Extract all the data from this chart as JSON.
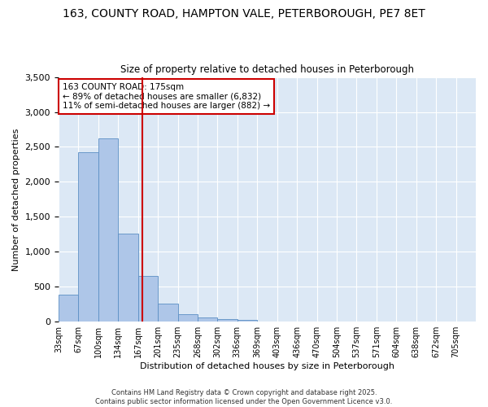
{
  "title_line1": "163, COUNTY ROAD, HAMPTON VALE, PETERBOROUGH, PE7 8ET",
  "title_line2": "Size of property relative to detached houses in Peterborough",
  "xlabel": "Distribution of detached houses by size in Peterborough",
  "ylabel": "Number of detached properties",
  "bin_labels": [
    "33sqm",
    "67sqm",
    "100sqm",
    "134sqm",
    "167sqm",
    "201sqm",
    "235sqm",
    "268sqm",
    "302sqm",
    "336sqm",
    "369sqm",
    "403sqm",
    "436sqm",
    "470sqm",
    "504sqm",
    "537sqm",
    "571sqm",
    "604sqm",
    "638sqm",
    "672sqm",
    "705sqm"
  ],
  "bar_values": [
    390,
    2420,
    2620,
    1260,
    650,
    260,
    110,
    60,
    35,
    20,
    5,
    0,
    0,
    0,
    0,
    0,
    0,
    0,
    0,
    0,
    0
  ],
  "bar_color": "#aec6e8",
  "bar_edge_color": "#5b8fc4",
  "background_color": "#dce8f5",
  "fig_background_color": "#ffffff",
  "grid_color": "#ffffff",
  "vline_color": "#cc0000",
  "ylim": [
    0,
    3500
  ],
  "yticks": [
    0,
    500,
    1000,
    1500,
    2000,
    2500,
    3000,
    3500
  ],
  "annotation_title": "163 COUNTY ROAD: 175sqm",
  "annotation_line1": "← 89% of detached houses are smaller (6,832)",
  "annotation_line2": "11% of semi-detached houses are larger (882) →",
  "annotation_box_color": "#cc0000",
  "footer_line1": "Contains HM Land Registry data © Crown copyright and database right 2025.",
  "footer_line2": "Contains public sector information licensed under the Open Government Licence v3.0."
}
